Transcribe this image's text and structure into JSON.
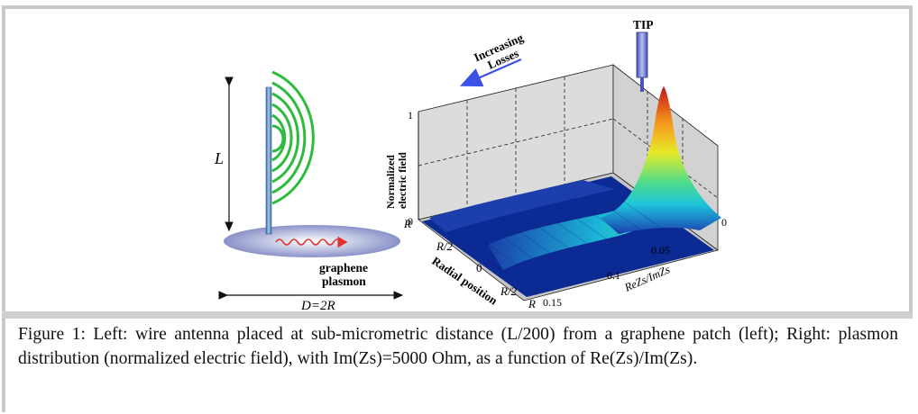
{
  "left_panel": {
    "length_label": "L",
    "diameter_label": "D=2R",
    "plasmon_label_line1": "graphene",
    "plasmon_label_line2": "plasmon"
  },
  "right_panel": {
    "tip_label": "TIP",
    "arrow_label_line1": "Increasing",
    "arrow_label_line2": "Losses",
    "z_axis_label_line1": "Normalized",
    "z_axis_label_line2": "electric field",
    "z_ticks": [
      "1",
      "0"
    ],
    "radial_axis_label": "Radial position",
    "radial_ticks": [
      "R",
      "R/2",
      "0",
      "R/2",
      "R"
    ],
    "loss_axis_label": "ReZs/ImZs",
    "loss_ticks": [
      "0",
      "0.05",
      "0.1",
      "0.15"
    ]
  },
  "colors": {
    "surface_low": "#0a1f8f",
    "surface_mid": "#19c7d6",
    "surface_high": "#d9221e",
    "arc_green": "#2dbb3c",
    "wave_red": "#e0332b",
    "arrow_blue": "#3c52e6"
  },
  "caption": {
    "text": "Figure 1: Left: wire antenna placed at sub-micrometric distance (L/200) from a graphene patch (left); Right: plasmon distribution (normalized electric field), with Im(Zs)=5000 Ohm, as a function of Re(Zs)/Im(Zs)."
  }
}
